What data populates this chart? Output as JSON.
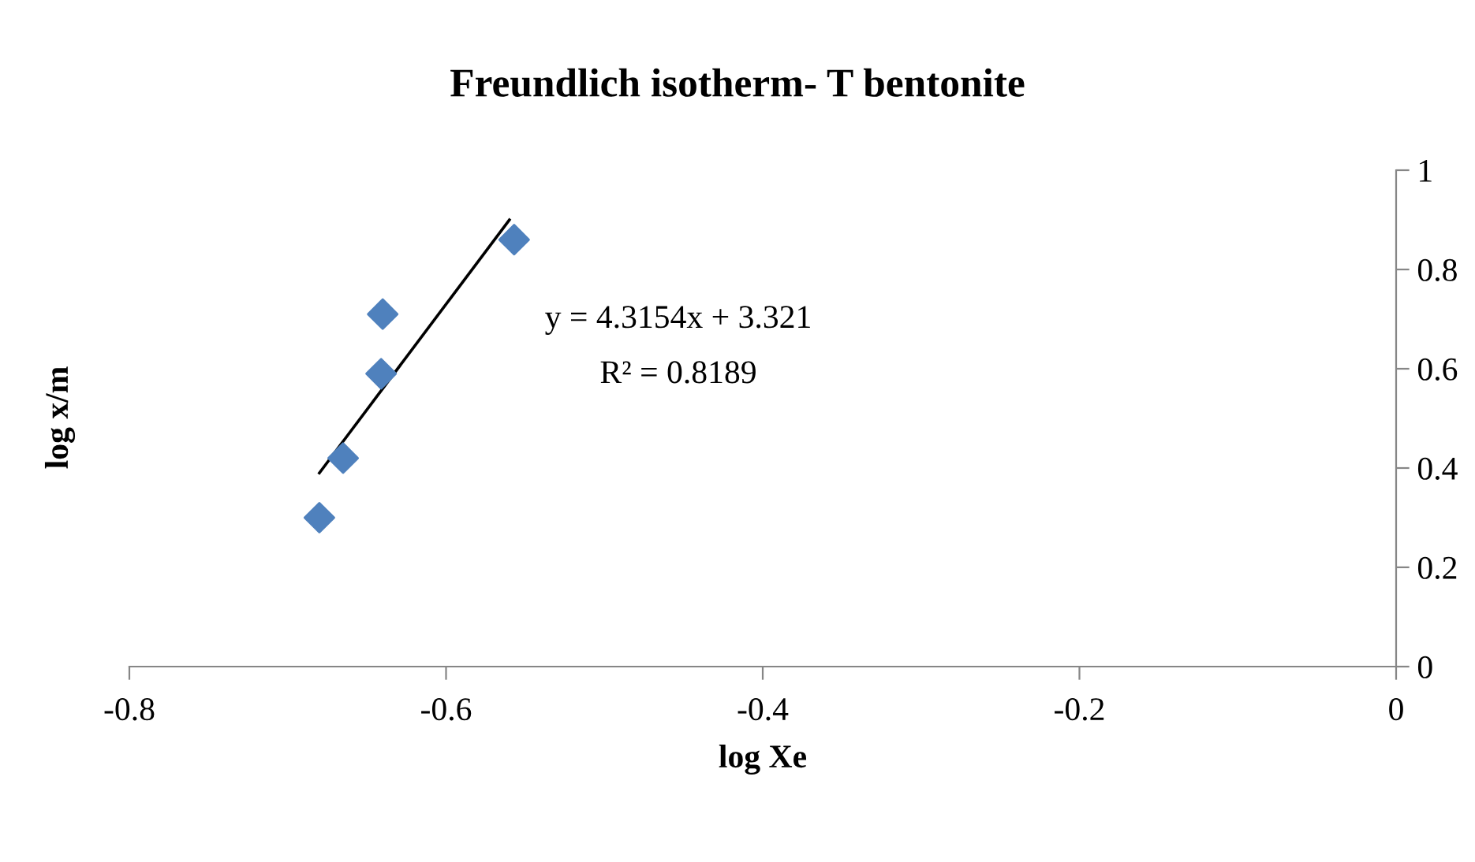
{
  "chart_data": {
    "type": "scatter",
    "title": "Freundlich isotherm- T bentonite",
    "xlabel": "log Xe",
    "ylabel": "log x/m",
    "series": [
      {
        "color": "#4f81bd",
        "marker": "diamond",
        "x": [
          -0.68,
          -0.665,
          -0.641,
          -0.64,
          -0.557
        ],
        "values": [
          0.3,
          0.42,
          0.59,
          0.71,
          0.86
        ]
      },
      {
        "type": "line",
        "color": "#000000",
        "marker": "none",
        "line_style": "solid",
        "x": [
          -0.68,
          -0.56
        ],
        "values": [
          0.39,
          0.9
        ]
      }
    ],
    "annotations": [
      "y = 4.3154x + 3.321",
      "R² = 0.8189"
    ],
    "xlim": [
      -0.8,
      0
    ],
    "xticks": [
      -0.8,
      -0.6,
      -0.4,
      -0.2,
      0
    ],
    "ylim": [
      0,
      1
    ],
    "yticks": [
      0,
      0.2,
      0.4,
      0.6,
      0.8,
      1
    ],
    "grid": false,
    "legend": false
  }
}
